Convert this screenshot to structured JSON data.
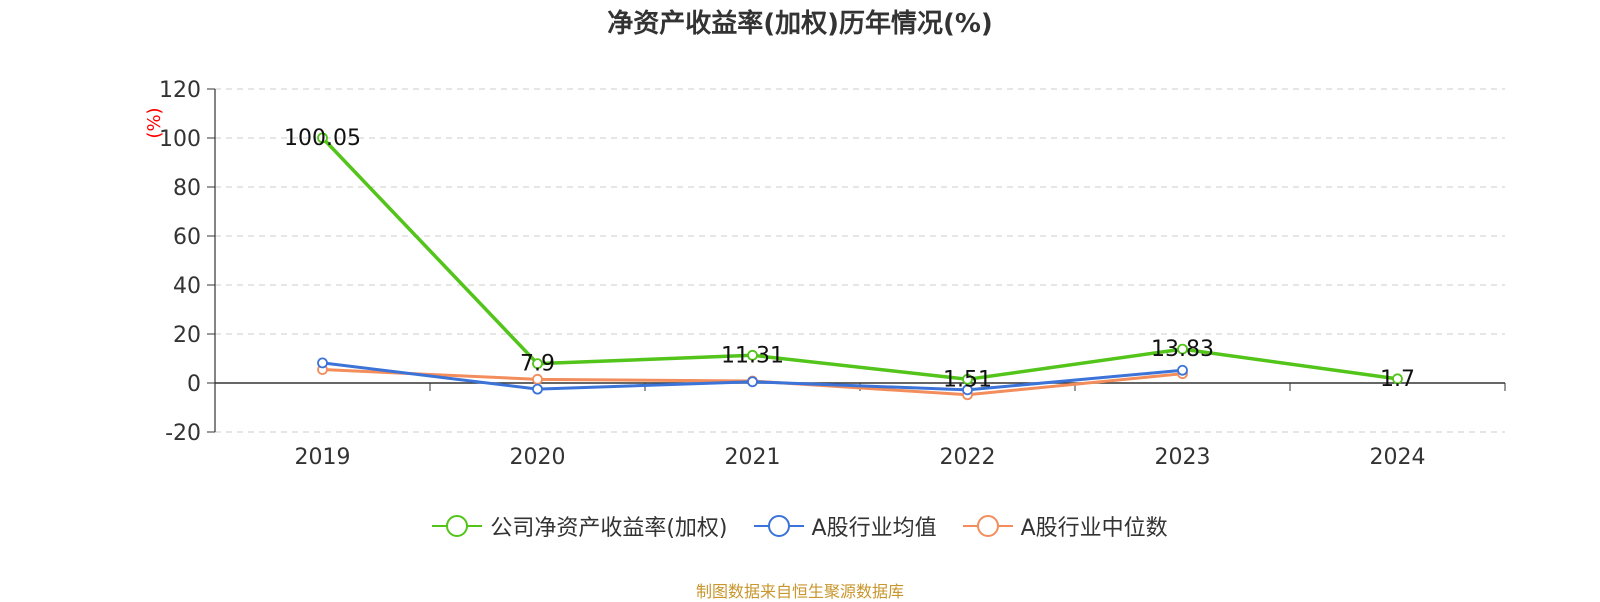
{
  "title": "净资产收益率(加权)历年情况(%)",
  "source_note": "制图数据来自恒生聚源数据库",
  "colors": {
    "company": "#52c41a",
    "industry_avg": "#3b73d8",
    "industry_median": "#f38d5c",
    "unit_label": "#ff0000"
  },
  "chart_data": {
    "type": "line",
    "title": "净资产收益率(加权)历年情况(%)",
    "ylabel": "(%)",
    "xlabel": "",
    "categories": [
      "2019",
      "2020",
      "2021",
      "2022",
      "2023",
      "2024"
    ],
    "ylim": [
      -20,
      120
    ],
    "yticks": [
      -20,
      0,
      20,
      40,
      60,
      80,
      100,
      120
    ],
    "grid": true,
    "legend_position": "bottom",
    "series": [
      {
        "name": "公司净资产收益率(加权)",
        "color": "#52c41a",
        "values": [
          100.05,
          7.9,
          11.31,
          1.51,
          13.83,
          1.7
        ],
        "labels": [
          "100.05",
          "7.9",
          "11.31",
          "1.51",
          "13.83",
          "1.7"
        ]
      },
      {
        "name": "A股行业均值",
        "color": "#3b73d8",
        "values": [
          8.2,
          -2.5,
          0.5,
          -2.8,
          5.2,
          null
        ]
      },
      {
        "name": "A股行业中位数",
        "color": "#f38d5c",
        "values": [
          5.5,
          1.5,
          0.8,
          -4.8,
          3.8,
          null
        ]
      }
    ]
  }
}
